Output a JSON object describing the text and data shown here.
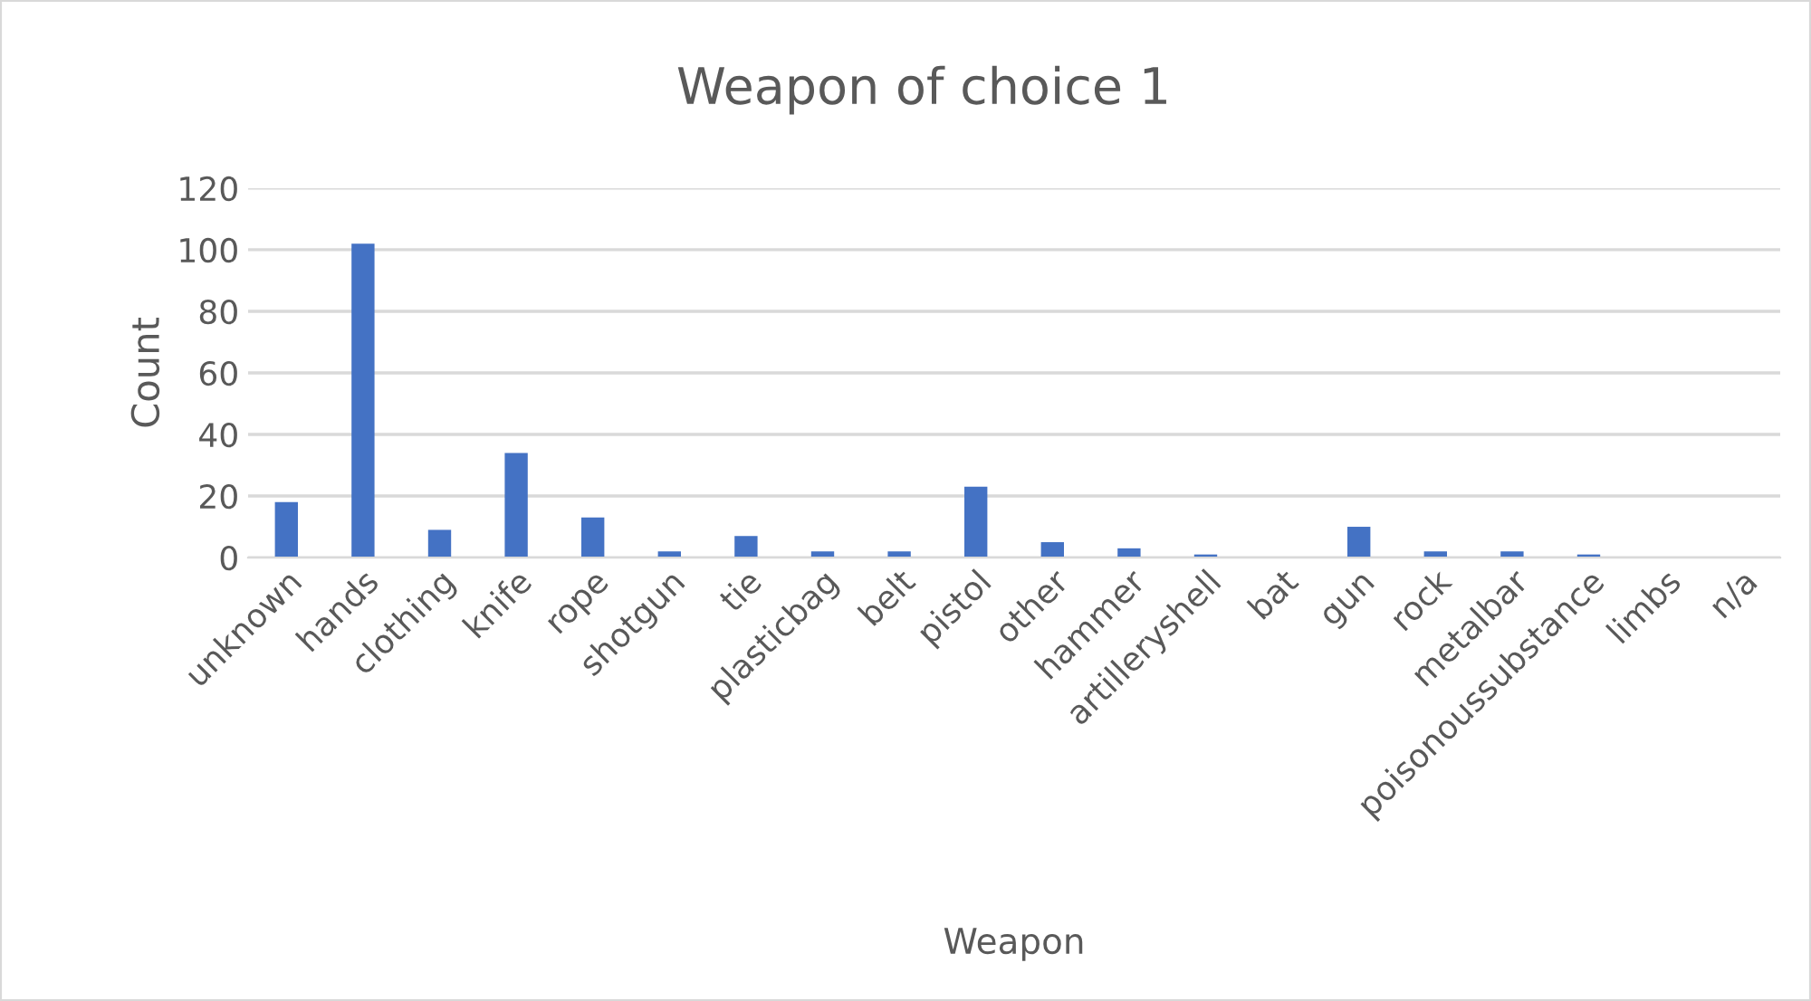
{
  "chart_data": {
    "type": "bar",
    "title": "Weapon of choice 1",
    "xlabel": "Weapon",
    "ylabel": "Count",
    "categories": [
      "unknown",
      "hands",
      "clothing",
      "knife",
      "rope",
      "shotgun",
      "tie",
      "plasticbag",
      "belt",
      "pistol",
      "other",
      "hammer",
      "artilleryshell",
      "bat",
      "gun",
      "rock",
      "metalbar",
      "poisonoussubstance",
      "limbs",
      "n/a"
    ],
    "values": [
      18,
      102,
      9,
      34,
      13,
      2,
      7,
      2,
      2,
      23,
      5,
      3,
      1,
      0,
      10,
      2,
      2,
      1,
      0,
      0
    ],
    "color": "#4472c4",
    "ylim": [
      0,
      120
    ],
    "yticks": [
      0,
      20,
      40,
      60,
      80,
      100,
      120
    ],
    "grid": "y",
    "legend": false
  }
}
